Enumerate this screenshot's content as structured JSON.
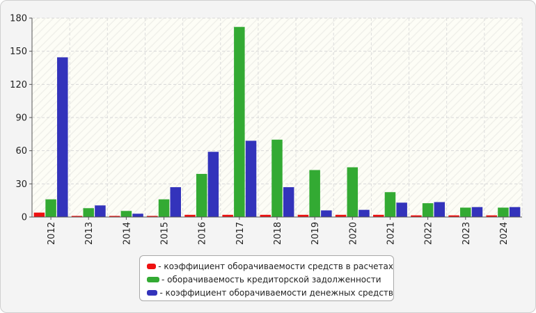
{
  "chart_data": {
    "type": "bar",
    "categories": [
      "2012",
      "2013",
      "2014",
      "2015",
      "2016",
      "2017",
      "2018",
      "2019",
      "2020",
      "2021",
      "2022",
      "2023",
      "2024"
    ],
    "series": [
      {
        "name": "коэффициент оборачиваемости средств в расчетах",
        "color": "#ee1111",
        "values": [
          4,
          1,
          1,
          1,
          2,
          2,
          2,
          2,
          2,
          2,
          1.5,
          1.5,
          1.5
        ]
      },
      {
        "name": "оборачиваемость кредиторской задолженности",
        "color": "#33aa33",
        "values": [
          16,
          8,
          5.5,
          16,
          39,
          172,
          70,
          42.5,
          45,
          22.5,
          12.5,
          8.5,
          8.5
        ]
      },
      {
        "name": "коэффициент оборачиваемости денежных средств",
        "color": "#3333bb",
        "values": [
          144.5,
          10.5,
          3,
          27,
          59,
          69,
          27,
          6,
          6.5,
          13,
          13.5,
          9,
          9
        ]
      }
    ],
    "yticks": [
      0,
      30,
      60,
      90,
      120,
      150,
      180
    ],
    "ylim": [
      0,
      180
    ],
    "grid": true,
    "legend_position": "bottom",
    "title": "",
    "xlabel": "",
    "ylabel": ""
  }
}
